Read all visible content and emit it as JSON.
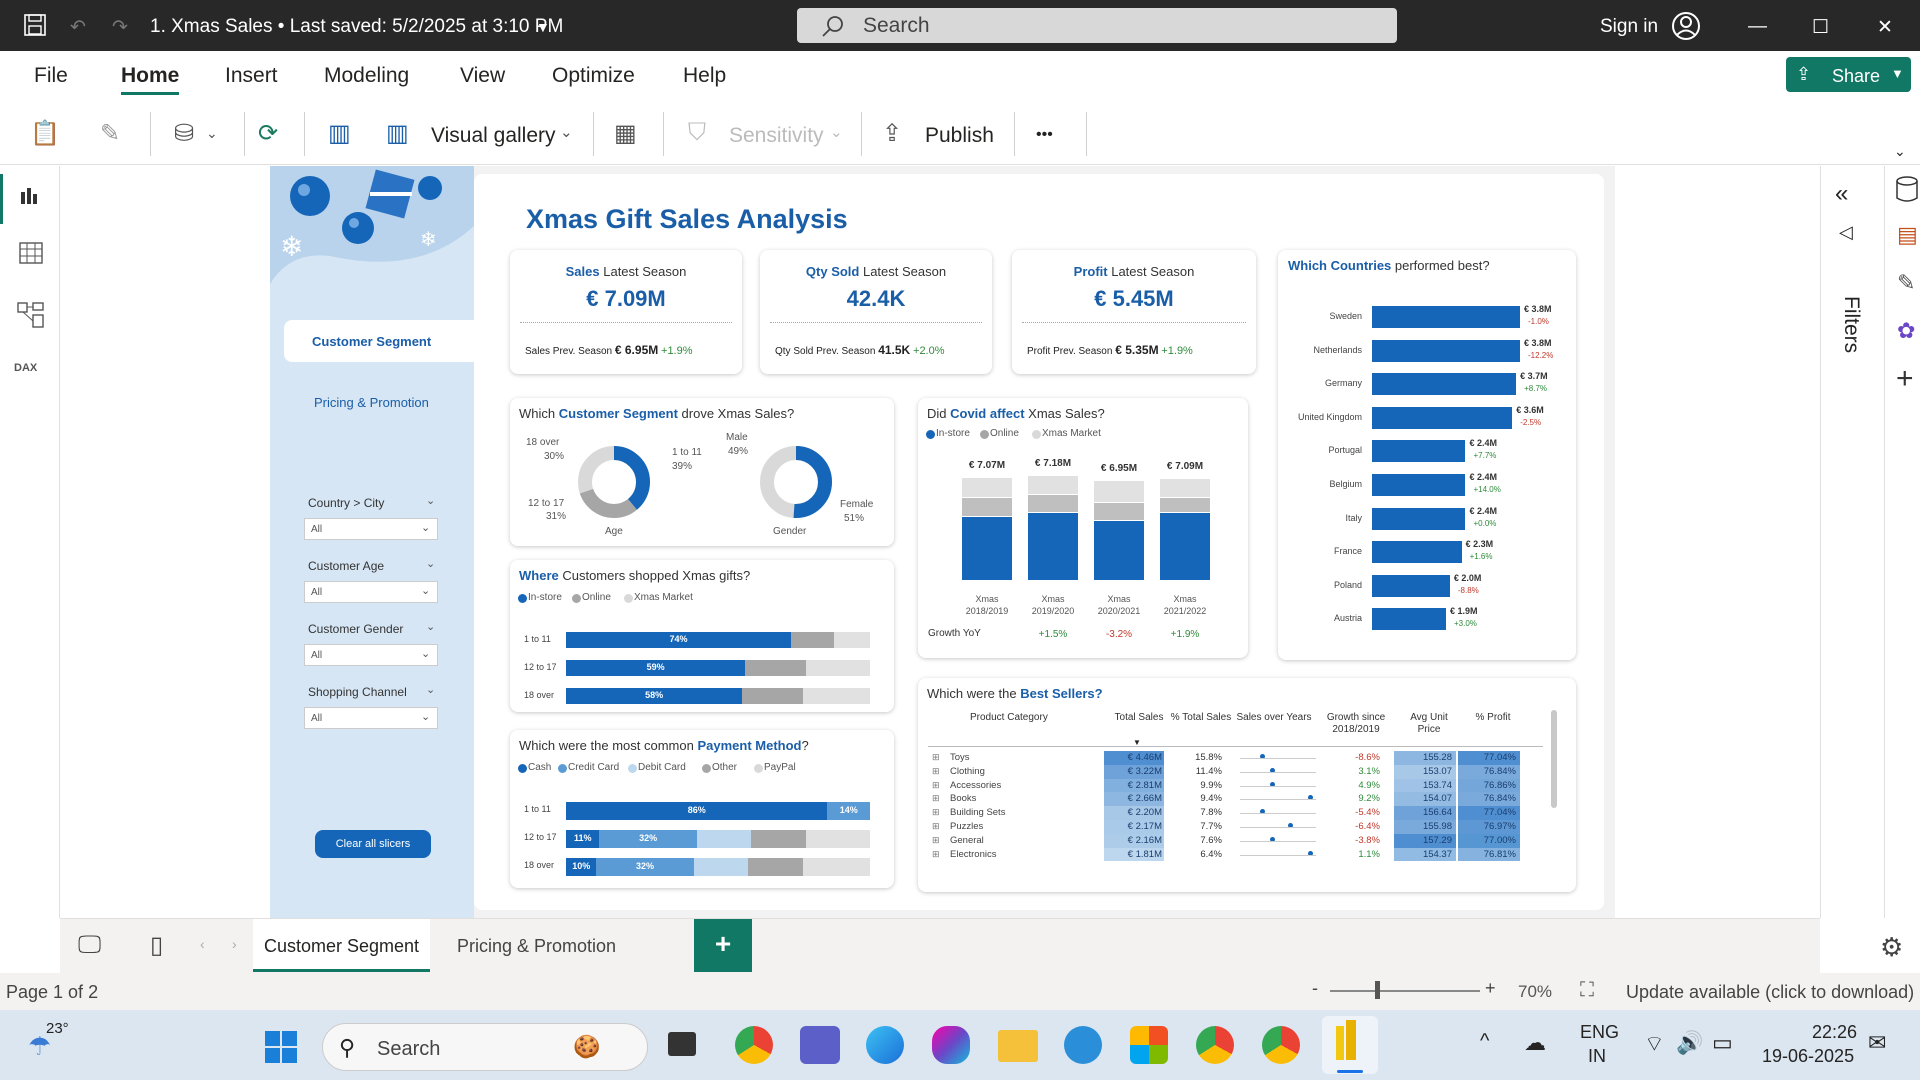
{
  "titlebar": {
    "title": "1. Xmas Sales  •  Last saved: 5/2/2025 at 3:10 PM",
    "search_placeholder": "Search",
    "signin": "Sign in"
  },
  "menu": {
    "items": [
      "File",
      "Home",
      "Insert",
      "Modeling",
      "View",
      "Optimize",
      "Help"
    ],
    "share": "Share"
  },
  "ribbon": {
    "visual_gallery": "Visual gallery",
    "sensitivity": "Sensitivity",
    "publish": "Publish",
    "more": "•••"
  },
  "report": {
    "title": "Xmas Gift Sales Analysis",
    "nav": {
      "customer_segment": "Customer Segment",
      "pricing": "Pricing & Promotion"
    },
    "slicers": [
      {
        "label": "Country > City",
        "value": "All"
      },
      {
        "label": "Customer Age",
        "value": "All"
      },
      {
        "label": "Customer Gender",
        "value": "All"
      },
      {
        "label": "Shopping Channel",
        "value": "All"
      }
    ],
    "clear_btn": "Clear all slicers",
    "kpis": [
      {
        "head": "Sales",
        "sub": "Latest Season",
        "value": "€ 7.09M",
        "prev_label": "Sales Prev. Season",
        "prev": "€ 6.95M",
        "growth": "+1.9%"
      },
      {
        "head": "Qty Sold",
        "sub": "Latest Season",
        "value": "42.4K",
        "prev_label": "Qty Sold Prev. Season",
        "prev": "41.5K",
        "growth": "+2.0%"
      },
      {
        "head": "Profit",
        "sub": "Latest Season",
        "value": "€ 5.45M",
        "prev_label": "Profit Prev. Season",
        "prev": "€ 5.35M",
        "growth": "+1.9%"
      }
    ],
    "segment": {
      "title_a": "Which ",
      "title_b": "Customer Segment",
      "title_c": " drove Xmas Sales?",
      "age_labels": [
        "18 over",
        "30%",
        "1 to 11",
        "39%",
        "12 to 17",
        "31%"
      ],
      "age_caption": "Age",
      "gender_labels": [
        "Male",
        "49%",
        "Female",
        "51%"
      ],
      "gender_caption": "Gender"
    },
    "covid": {
      "title_a": "Did ",
      "title_b": "Covid affect",
      "title_c": " Xmas Sales?",
      "legend": [
        "In-store",
        "Online",
        "Xmas Market"
      ],
      "totals": [
        "€ 7.07M",
        "€ 7.18M",
        "€ 6.95M",
        "€ 7.09M"
      ],
      "years": [
        "Xmas",
        "Xmas",
        "Xmas",
        "Xmas"
      ],
      "years2": [
        "2018/2019",
        "2019/2020",
        "2020/2021",
        "2021/2022"
      ],
      "growth_label": "Growth YoY",
      "growth": [
        "+1.5%",
        "-3.2%",
        "+1.9%"
      ]
    },
    "countries": {
      "title_a": "Which Countries",
      "title_b": " performed best?",
      "items": [
        {
          "name": "Sweden",
          "value": "€ 3.8M",
          "pct": "-1.0%"
        },
        {
          "name": "Netherlands",
          "value": "€ 3.8M",
          "pct": "-12.2%"
        },
        {
          "name": "Germany",
          "value": "€ 3.7M",
          "pct": "+8.7%"
        },
        {
          "name": "United Kingdom",
          "value": "€ 3.6M",
          "pct": "-2.5%"
        },
        {
          "name": "Portugal",
          "value": "€ 2.4M",
          "pct": "+7.7%"
        },
        {
          "name": "Belgium",
          "value": "€ 2.4M",
          "pct": "+14.0%"
        },
        {
          "name": "Italy",
          "value": "€ 2.4M",
          "pct": "+0.0%"
        },
        {
          "name": "France",
          "value": "€ 2.3M",
          "pct": "+1.6%"
        },
        {
          "name": "Poland",
          "value": "€ 2.0M",
          "pct": "-8.8%"
        },
        {
          "name": "Austria",
          "value": "€ 1.9M",
          "pct": "+3.0%"
        }
      ]
    },
    "where": {
      "title_a": "Where",
      "title_b": " Customers shopped Xmas gifts?",
      "legend": [
        "In-store",
        "Online",
        "Xmas Market"
      ],
      "rows": [
        {
          "label": "1 to 11",
          "pct": "74%"
        },
        {
          "label": "12 to 17",
          "pct": "59%"
        },
        {
          "label": "18 over",
          "pct": "58%"
        }
      ]
    },
    "payment": {
      "title_a": "Which were the most common ",
      "title_b": "Payment Method",
      "title_c": "?",
      "legend": [
        "Cash",
        "Credit Card",
        "Debit Card",
        "Other",
        "PayPal"
      ],
      "rows": [
        {
          "label": "1 to 11",
          "a": "86%",
          "b": "14%"
        },
        {
          "label": "12 to 17",
          "a": "11%",
          "b": "32%"
        },
        {
          "label": "18 over",
          "a": "10%",
          "b": "32%"
        }
      ]
    },
    "bestsellers": {
      "title_a": "Which were the ",
      "title_b": "Best Sellers?",
      "headers": [
        "Product Category",
        "Total Sales",
        "% Total Sales",
        "Sales over Years",
        "Growth since 2018/2019",
        "Avg Unit Price",
        "% Profit"
      ],
      "rows": [
        [
          "Toys",
          "€ 4.46M",
          "15.8%",
          "-8.6%",
          "155.28",
          "77.04%"
        ],
        [
          "Clothing",
          "€ 3.22M",
          "11.4%",
          "3.1%",
          "153.07",
          "76.84%"
        ],
        [
          "Accessories",
          "€ 2.81M",
          "9.9%",
          "4.9%",
          "153.74",
          "76.86%"
        ],
        [
          "Books",
          "€ 2.66M",
          "9.4%",
          "9.2%",
          "154.07",
          "76.84%"
        ],
        [
          "Building Sets",
          "€ 2.20M",
          "7.8%",
          "-5.4%",
          "156.64",
          "77.04%"
        ],
        [
          "Puzzles",
          "€ 2.17M",
          "7.7%",
          "-6.4%",
          "155.98",
          "76.97%"
        ],
        [
          "General",
          "€ 2.16M",
          "7.6%",
          "-3.8%",
          "157.29",
          "77.00%"
        ],
        [
          "Electronics",
          "€ 1.81M",
          "6.4%",
          "1.1%",
          "154.37",
          "76.81%"
        ]
      ]
    }
  },
  "rightpane": {
    "filters": "Filters"
  },
  "tabs": {
    "items": [
      "Customer Segment",
      "Pricing & Promotion"
    ],
    "add": "+"
  },
  "status": {
    "page": "Page 1 of 2",
    "zoom": "70%",
    "update": "Update available (click to download)"
  },
  "taskbar": {
    "weather": "23°",
    "search": "Search",
    "lang1": "ENG",
    "lang2": "IN",
    "time": "22:26",
    "date": "19-06-2025"
  }
}
